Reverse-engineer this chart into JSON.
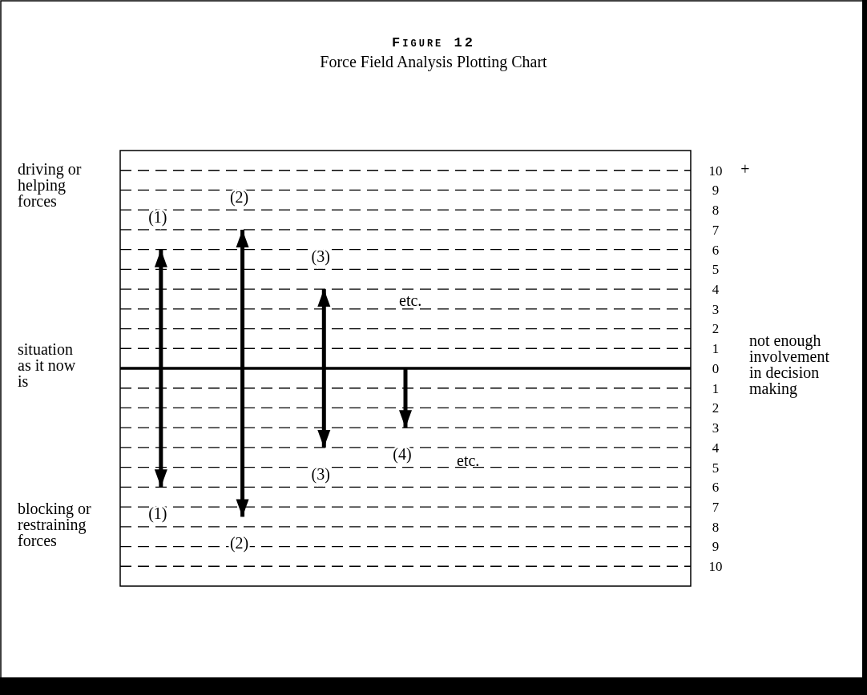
{
  "chart_data": {
    "type": "bar",
    "title": "Figure 12",
    "subtitle": "Force Field Analysis Plotting Chart",
    "categories": [
      null,
      null,
      null,
      null,
      null,
      null,
      null
    ],
    "stacked": true,
    "series": [
      {
        "color": "#000000",
        "values": [
          6,
          7,
          4,
          null,
          null,
          null,
          null
        ]
      },
      {
        "color": "#000000",
        "values": [
          -6,
          -7.5,
          -4,
          -3,
          null,
          null,
          null
        ]
      }
    ],
    "ylim": [
      -11,
      11
    ],
    "yticks": [
      10,
      9,
      8,
      7,
      6,
      5,
      4,
      3,
      2,
      1,
      0,
      {
        "value": -1,
        "label": "1"
      },
      {
        "value": -2,
        "label": "2"
      },
      {
        "value": -3,
        "label": "3"
      },
      {
        "value": -4,
        "label": "4"
      },
      {
        "value": -5,
        "label": "5"
      },
      {
        "value": -6,
        "label": "6"
      },
      {
        "value": -7,
        "label": "7"
      },
      {
        "value": -8,
        "label": "8"
      },
      {
        "value": -9,
        "label": "9"
      },
      {
        "value": -10,
        "label": "10"
      }
    ],
    "grid": "y",
    "line_style": "dashed",
    "ref_lines": [
      {
        "axis": "y",
        "value": 0,
        "color": "#000000"
      }
    ],
    "annotations": [
      "driving or helping forces",
      "situation as it now is",
      "blocking or restraining forces",
      "not enough involvement in decision making",
      "etc.",
      "etc.",
      "+",
      "(1)",
      "(2)",
      "(3)",
      "(1)",
      "(2)",
      "(3)",
      "(4)"
    ]
  }
}
